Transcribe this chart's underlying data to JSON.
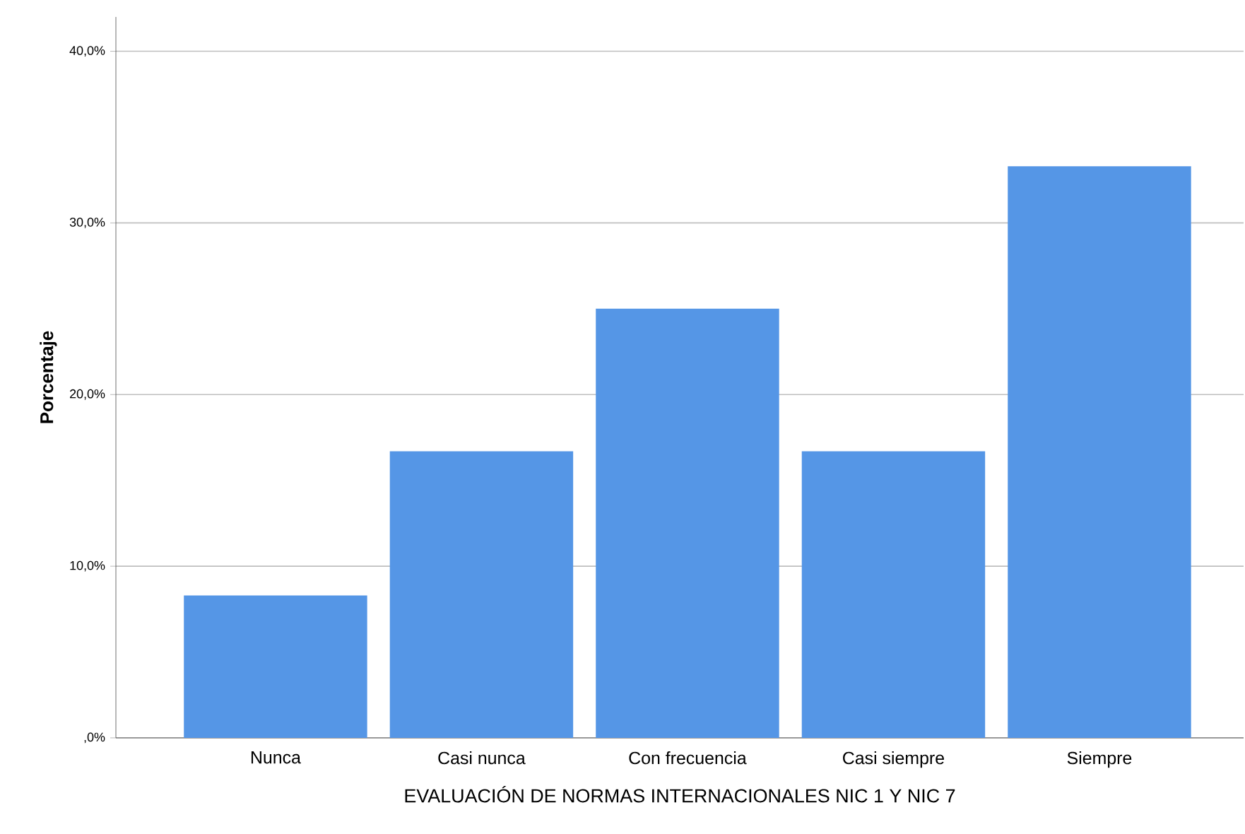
{
  "chart_data": {
    "type": "bar",
    "xlabel": "EVALUACIÓN DE NORMAS INTERNACIONALES NIC 1 Y NIC 7",
    "ylabel": "Porcentaje",
    "categories": [
      "Nunca",
      "Casi nunca",
      "Con frecuencia",
      "Casi siempre",
      "Siempre"
    ],
    "values": [
      8.3,
      16.7,
      25.0,
      16.7,
      33.3
    ],
    "color": "#5596e6",
    "ylim": [
      0,
      42
    ],
    "yticks": [
      {
        "value": 0,
        "label": ",0%"
      },
      {
        "value": 10,
        "label": "10,0%"
      },
      {
        "value": 20,
        "label": "20,0%"
      },
      {
        "value": 30,
        "label": "30,0%"
      },
      {
        "value": 40,
        "label": "40,0%"
      }
    ],
    "grid": "y"
  }
}
